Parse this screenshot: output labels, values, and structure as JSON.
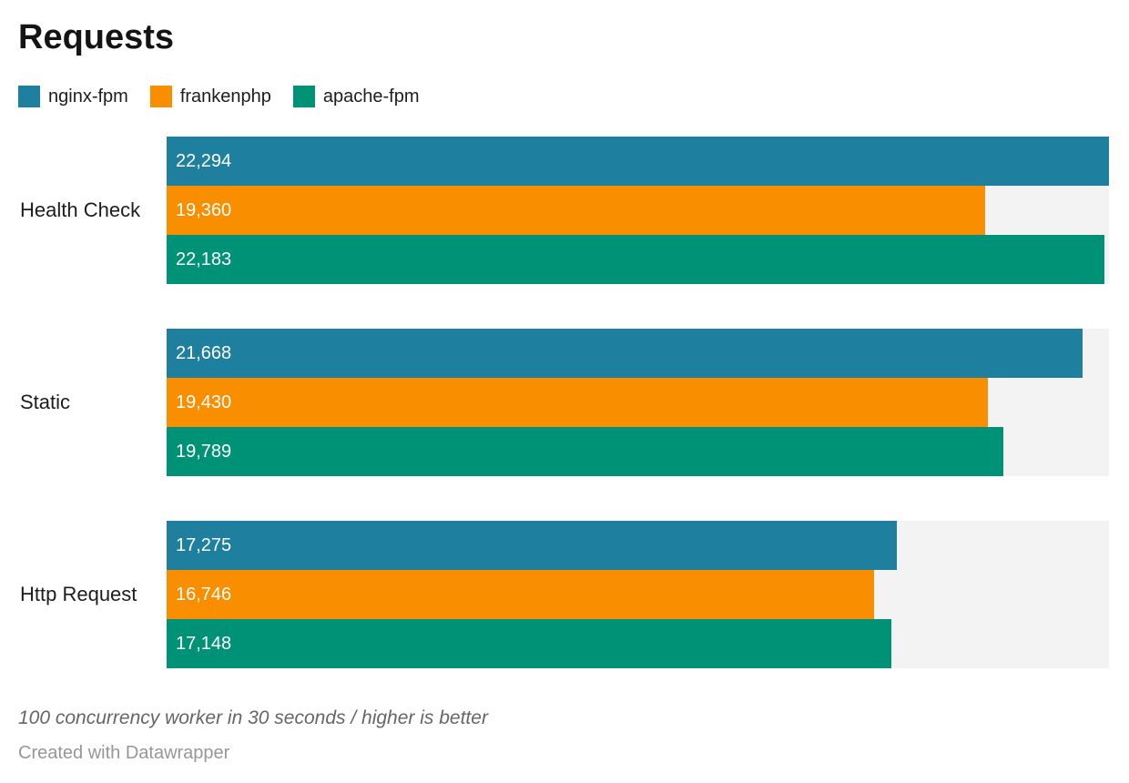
{
  "title": "Requests",
  "legend": {
    "items": [
      {
        "label": "nginx-fpm",
        "color": "#1f7f9e"
      },
      {
        "label": "frankenphp",
        "color": "#f98e00"
      },
      {
        "label": "apache-fpm",
        "color": "#009276"
      }
    ]
  },
  "chart_data": {
    "type": "bar",
    "orientation": "horizontal",
    "title": "Requests",
    "categories": [
      "Health Check",
      "Static",
      "Http Request"
    ],
    "series": [
      {
        "name": "nginx-fpm",
        "color": "#1f7f9e",
        "values": [
          22294,
          21668,
          17275
        ],
        "labels": [
          "22,294",
          "21,668",
          "17,275"
        ]
      },
      {
        "name": "frankenphp",
        "color": "#f98e00",
        "values": [
          19360,
          19430,
          16746
        ],
        "labels": [
          "19,360",
          "19,430",
          "16,746"
        ]
      },
      {
        "name": "apache-fpm",
        "color": "#009276",
        "values": [
          22183,
          19789,
          17148
        ],
        "labels": [
          "22,183",
          "19,789",
          "17,148"
        ]
      }
    ],
    "xmax": 22294,
    "xlabel": "",
    "ylabel": "",
    "grid": false,
    "axis_ticks": false,
    "track_color": "#f3f3f3",
    "value_labels_inside": true,
    "legend_position": "top"
  },
  "footer": {
    "note": "100 concurrency worker in 30 seconds / higher is better",
    "credit": "Created with Datawrapper"
  }
}
